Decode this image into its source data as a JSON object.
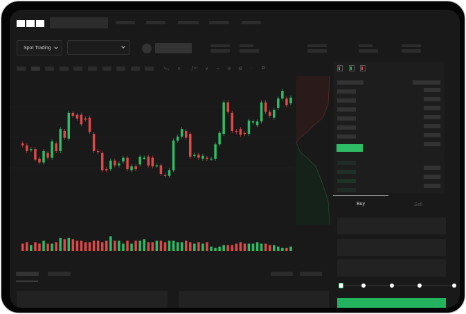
{
  "brand": {
    "logo": "OKX"
  },
  "market": {
    "type_selector": "Spot Trading"
  },
  "trade": {
    "tabs": [
      {
        "label": "Buy",
        "active": true
      },
      {
        "label": "Sell",
        "active": false
      }
    ],
    "leverage_slider_position": 0
  },
  "colors": {
    "up": "#2ebd66",
    "down": "#e04848",
    "background": "#191919",
    "buy_button": "#23b35f"
  },
  "toolbar_icons": [
    "indicator-icon",
    "line-type-icon",
    "function-icon",
    "trend-line-icon",
    "draw-icon",
    "settings-icon",
    "refresh-icon",
    "fullscreen-icon"
  ],
  "orderbook_view_icons": [
    "both-sides-icon",
    "bids-only-icon",
    "asks-only-icon"
  ],
  "chart_data": {
    "type": "candlestick",
    "candles": [
      [
        40,
        38
      ],
      [
        38,
        32
      ],
      [
        33,
        34
      ],
      [
        34,
        23
      ],
      [
        24,
        20
      ],
      [
        20,
        32
      ],
      [
        30,
        25
      ],
      [
        25,
        42
      ],
      [
        40,
        32
      ],
      [
        32,
        55
      ],
      [
        53,
        46
      ],
      [
        45,
        72
      ],
      [
        72,
        69
      ],
      [
        70,
        66
      ],
      [
        70,
        60
      ],
      [
        66,
        65
      ],
      [
        67,
        52
      ],
      [
        50,
        32
      ],
      [
        32,
        31
      ],
      [
        30,
        12
      ],
      [
        13,
        12
      ],
      [
        13,
        22
      ],
      [
        22,
        17
      ],
      [
        17,
        19
      ],
      [
        21,
        25
      ],
      [
        25,
        13
      ],
      [
        12,
        16
      ],
      [
        16,
        13
      ],
      [
        18,
        26
      ],
      [
        25,
        25
      ],
      [
        26,
        17
      ],
      [
        25,
        16
      ],
      [
        17,
        17
      ],
      [
        17,
        8
      ],
      [
        7,
        6
      ],
      [
        6,
        12
      ],
      [
        12,
        43
      ],
      [
        43,
        47
      ],
      [
        47,
        55
      ],
      [
        53,
        46
      ],
      [
        50,
        26
      ],
      [
        27,
        28
      ],
      [
        28,
        25
      ],
      [
        24,
        27
      ],
      [
        25,
        24
      ],
      [
        24,
        24
      ],
      [
        24,
        39
      ],
      [
        39,
        51
      ],
      [
        50,
        83
      ],
      [
        83,
        73
      ],
      [
        72,
        53
      ],
      [
        53,
        52
      ],
      [
        55,
        49
      ],
      [
        51,
        50
      ],
      [
        50,
        64
      ],
      [
        62,
        63
      ],
      [
        59,
        63
      ],
      [
        63,
        83
      ],
      [
        83,
        73
      ],
      [
        73,
        69
      ],
      [
        67,
        75
      ],
      [
        77,
        87
      ],
      [
        87,
        95
      ],
      [
        87,
        80
      ],
      [
        82,
        88
      ]
    ],
    "volume": [
      5,
      6,
      4,
      6,
      5,
      7,
      5,
      5,
      6,
      9,
      8,
      9,
      8,
      7,
      7,
      6,
      6,
      7,
      7,
      6,
      7,
      10,
      7,
      7,
      5,
      7,
      5,
      7,
      7,
      8,
      6,
      6,
      7,
      7,
      6,
      7,
      7,
      6,
      6,
      7,
      6,
      5,
      6,
      5,
      6,
      3,
      2,
      3,
      4,
      4,
      4,
      5,
      6,
      5,
      5,
      5,
      6,
      5,
      5,
      4,
      4,
      3,
      2,
      2,
      3
    ]
  }
}
